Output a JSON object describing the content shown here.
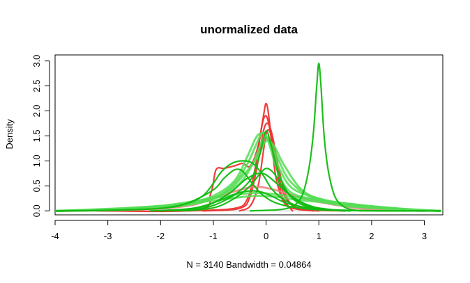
{
  "chart_data": {
    "type": "line",
    "title": "unormalized data",
    "xlabel": "N = 3140   Bandwidth = 0.04864",
    "ylabel": "Density",
    "xlim": [
      -4,
      3.35
    ],
    "ylim": [
      -0.08,
      3.12
    ],
    "x_ticks": [
      "-4",
      "-3",
      "-2",
      "-1",
      "0",
      "1",
      "2",
      "3"
    ],
    "y_ticks": [
      "0.0",
      "0.5",
      "1.0",
      "1.5",
      "2.0",
      "2.5",
      "3.0"
    ],
    "grid": false,
    "legend": "none",
    "zero_line": true,
    "colors": {
      "red": "#ee3333",
      "light_red": "#f08080",
      "green": "#11bb11",
      "light_green": "#55dd55"
    },
    "series": [
      {
        "color": "#ee3333",
        "x": [
          -3.2,
          -1.3,
          -1.05,
          -0.95,
          -0.8,
          -0.6,
          -0.45,
          -0.3,
          -0.15,
          -0.05,
          0,
          0.05,
          0.12,
          0.2,
          0.35,
          0.6,
          1.0,
          1.5
        ],
        "y": [
          0,
          0.02,
          0.35,
          0.82,
          0.85,
          0.9,
          0.95,
          0.9,
          1.3,
          1.9,
          2.15,
          1.9,
          1.2,
          0.6,
          0.15,
          0.03,
          0.01,
          0
        ]
      },
      {
        "color": "#ee3333",
        "x": [
          -1.5,
          -0.6,
          -0.35,
          -0.2,
          -0.08,
          0,
          0.08,
          0.2,
          0.35,
          0.6,
          1.0
        ],
        "y": [
          0,
          0.05,
          0.25,
          0.9,
          1.7,
          1.9,
          1.6,
          0.9,
          0.3,
          0.05,
          0
        ]
      },
      {
        "color": "#ee3333",
        "x": [
          -1.2,
          -0.5,
          -0.3,
          -0.15,
          -0.05,
          0.03,
          0.12,
          0.25,
          0.4,
          0.6,
          0.9
        ],
        "y": [
          0,
          0.05,
          0.3,
          1.0,
          1.6,
          1.75,
          1.5,
          0.8,
          0.25,
          0.05,
          0
        ]
      },
      {
        "color": "#ee3333",
        "x": [
          -0.5,
          -0.3,
          -0.15,
          -0.05,
          0.02,
          0.1,
          0.2,
          0.3,
          0.5
        ],
        "y": [
          0,
          0.1,
          0.5,
          1.2,
          1.6,
          1.5,
          0.9,
          0.3,
          0
        ]
      },
      {
        "color": "#f08080",
        "x": [
          -4,
          -2.5,
          -1.5,
          -1.0,
          -0.5,
          -0.2,
          0,
          0.3,
          0.6,
          1.0,
          1.5,
          2.0,
          3.0
        ],
        "y": [
          0,
          0.02,
          0.1,
          0.25,
          0.42,
          0.48,
          0.46,
          0.38,
          0.28,
          0.18,
          0.09,
          0.03,
          0
        ]
      },
      {
        "color": "#55dd55",
        "x": [
          -4,
          -3,
          -2,
          -1.5,
          -1.0,
          -0.6,
          -0.35,
          -0.2,
          -0.1,
          0,
          0.1,
          0.25,
          0.5,
          1.0,
          1.5,
          2.0,
          2.5,
          3.3
        ],
        "y": [
          0,
          0.02,
          0.08,
          0.15,
          0.3,
          0.6,
          1.1,
          1.45,
          1.55,
          1.5,
          1.2,
          0.7,
          0.35,
          0.22,
          0.15,
          0.08,
          0.03,
          0
        ]
      },
      {
        "color": "#55dd55",
        "x": [
          -4,
          -2.5,
          -1.5,
          -1.0,
          -0.6,
          -0.35,
          -0.2,
          -0.08,
          0,
          0.1,
          0.25,
          0.5,
          1.0,
          1.5,
          2.5,
          3.3
        ],
        "y": [
          0,
          0.03,
          0.12,
          0.25,
          0.55,
          0.95,
          1.3,
          1.55,
          1.5,
          1.3,
          0.85,
          0.45,
          0.25,
          0.15,
          0.05,
          0
        ]
      },
      {
        "color": "#55dd55",
        "x": [
          -4,
          -2.5,
          -1.5,
          -0.8,
          -0.4,
          -0.15,
          0,
          0.15,
          0.35,
          0.7,
          1.2,
          2.0,
          3.3
        ],
        "y": [
          0,
          0.04,
          0.12,
          0.35,
          0.75,
          1.1,
          1.4,
          1.3,
          0.9,
          0.4,
          0.18,
          0.06,
          0
        ]
      },
      {
        "color": "#55dd55",
        "x": [
          -4,
          -2.5,
          -1.5,
          -0.9,
          -0.5,
          -0.25,
          -0.05,
          0.05,
          0.2,
          0.45,
          0.9,
          1.5,
          2.5,
          3.3
        ],
        "y": [
          0,
          0.05,
          0.15,
          0.3,
          0.55,
          0.95,
          1.45,
          1.4,
          1.1,
          0.6,
          0.25,
          0.1,
          0.03,
          0
        ]
      },
      {
        "color": "#55dd55",
        "x": [
          -4,
          -3,
          -2,
          -1.2,
          -0.6,
          -0.2,
          0.1,
          0.4,
          0.9,
          1.5,
          2.2,
          3.0,
          3.3
        ],
        "y": [
          0,
          0.03,
          0.1,
          0.22,
          0.32,
          0.36,
          0.34,
          0.3,
          0.22,
          0.15,
          0.07,
          0.01,
          0
        ]
      },
      {
        "color": "#55dd55",
        "x": [
          -4,
          -3,
          -2,
          -1.2,
          -0.6,
          -0.2,
          0.2,
          0.6,
          1.2,
          2.0,
          2.8,
          3.3
        ],
        "y": [
          0,
          0.04,
          0.1,
          0.18,
          0.26,
          0.3,
          0.28,
          0.22,
          0.16,
          0.09,
          0.02,
          0
        ]
      },
      {
        "color": "#11bb11",
        "x": [
          -4,
          -3,
          -2,
          -1.5,
          -1.2,
          -1.0,
          -0.85,
          -0.65,
          -0.45,
          -0.25,
          -0.05,
          0.1,
          0.3,
          0.6,
          1.0,
          1.5,
          2.0,
          3.3
        ],
        "y": [
          0,
          0.01,
          0.05,
          0.15,
          0.3,
          0.55,
          0.78,
          0.95,
          1.0,
          0.95,
          0.7,
          0.45,
          0.25,
          0.1,
          0.04,
          0.01,
          0,
          0
        ]
      },
      {
        "color": "#11bb11",
        "x": [
          -1.8,
          -1.2,
          -0.8,
          -0.5,
          -0.25,
          -0.1,
          0,
          0.1,
          0.25,
          0.5,
          0.9,
          1.5
        ],
        "y": [
          0,
          0.05,
          0.2,
          0.4,
          0.7,
          1.2,
          1.6,
          1.3,
          0.7,
          0.25,
          0.05,
          0
        ]
      },
      {
        "color": "#11bb11",
        "x": [
          -1.6,
          -1.0,
          -0.6,
          -0.3,
          -0.15,
          0,
          0.15,
          0.3,
          0.6,
          1.0,
          1.6
        ],
        "y": [
          0,
          0.06,
          0.25,
          0.5,
          0.7,
          0.85,
          0.75,
          0.5,
          0.2,
          0.05,
          0
        ]
      },
      {
        "color": "#11bb11",
        "x": [
          -2.0,
          -1.2,
          -0.7,
          -0.4,
          -0.15,
          0,
          0.2,
          0.5,
          0.9,
          1.5
        ],
        "y": [
          0,
          0.08,
          0.35,
          0.62,
          0.75,
          0.72,
          0.55,
          0.28,
          0.08,
          0
        ]
      },
      {
        "color": "#11bb11",
        "x": [
          -2.2,
          -1.4,
          -0.9,
          -0.55,
          -0.3,
          -0.1,
          0.1,
          0.4,
          0.9,
          1.6
        ],
        "y": [
          0,
          0.05,
          0.2,
          0.35,
          0.4,
          0.38,
          0.3,
          0.15,
          0.04,
          0
        ]
      },
      {
        "color": "#11bb11",
        "x": [
          -0.3,
          0.2,
          0.4,
          0.55,
          0.7,
          0.82,
          0.9,
          0.96,
          1.0,
          1.04,
          1.1,
          1.18,
          1.3,
          1.45,
          1.6,
          1.8
        ],
        "y": [
          0,
          0.02,
          0.05,
          0.12,
          0.35,
          0.9,
          1.6,
          2.5,
          2.95,
          2.5,
          1.5,
          0.8,
          0.3,
          0.1,
          0.03,
          0
        ]
      },
      {
        "color": "#11bb11",
        "x": [
          -4,
          -3,
          -2,
          -1.5,
          -1.0,
          -0.8,
          -0.6,
          -0.45,
          -0.3,
          -0.1,
          0.1,
          0.3,
          0.6,
          1.0,
          1.5,
          2.5,
          3.3
        ],
        "y": [
          0,
          0.01,
          0.05,
          0.15,
          0.42,
          0.65,
          0.82,
          0.8,
          0.6,
          0.35,
          0.2,
          0.12,
          0.06,
          0.02,
          0.01,
          0,
          0
        ]
      }
    ]
  }
}
